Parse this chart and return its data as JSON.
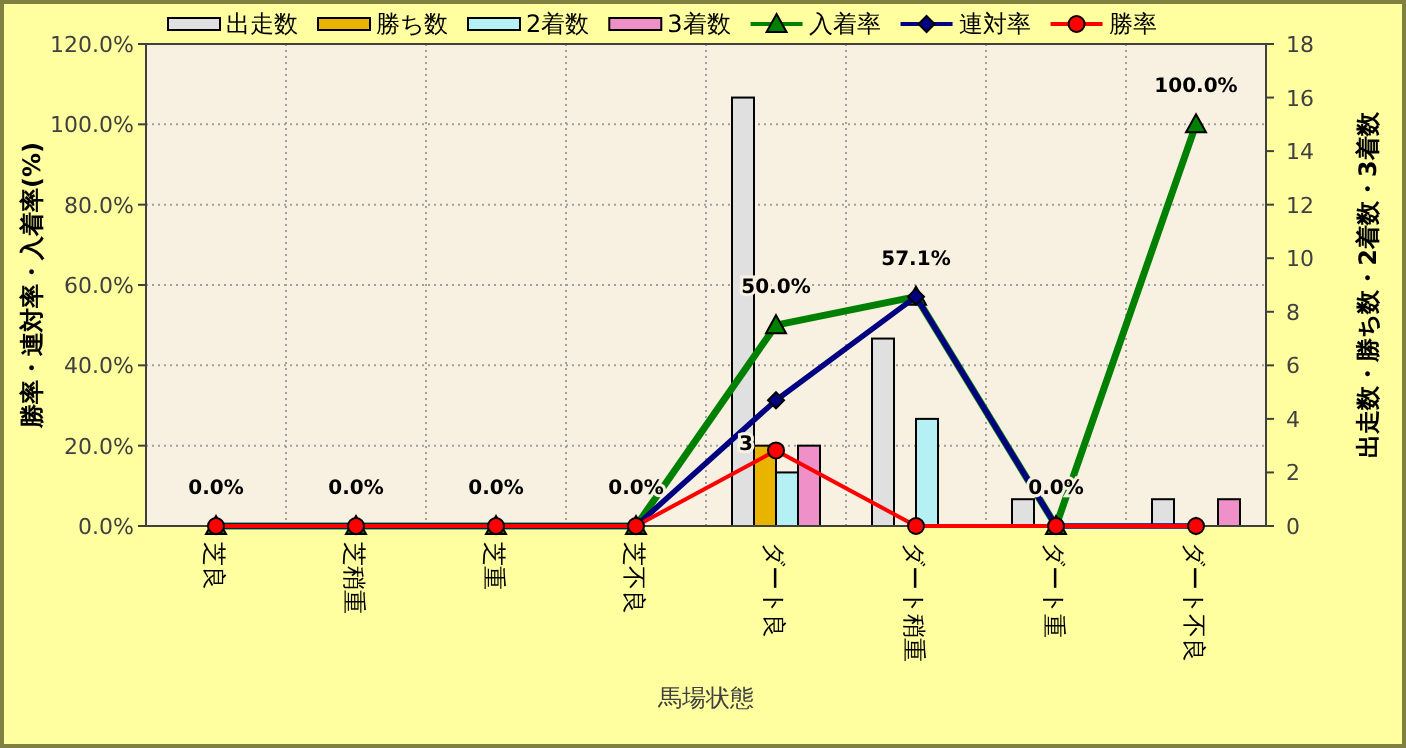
{
  "chart_data": {
    "type": "bar",
    "xlabel": "馬場状態",
    "ylabel": "勝率・連対率・入着率(%)",
    "y2label": "出走数・勝ち数・2着数・3着数",
    "categories": [
      "芝良",
      "芝稍重",
      "芝重",
      "芝不良",
      "ダート良",
      "ダート稍重",
      "ダート重",
      "ダート不良"
    ],
    "series": [
      {
        "name": "出走数",
        "axis": "y2",
        "color": "#e0e0e0",
        "values": [
          0,
          0,
          0,
          0,
          16,
          7,
          1,
          1
        ]
      },
      {
        "name": "勝ち数",
        "axis": "y2",
        "color": "#e8b400",
        "values": [
          0,
          0,
          0,
          0,
          3,
          0,
          0,
          0
        ],
        "value_labels": [
          null,
          null,
          null,
          null,
          "3",
          null,
          null,
          null
        ]
      },
      {
        "name": "2着数",
        "axis": "y2",
        "color": "#b4f0f4",
        "values": [
          0,
          0,
          0,
          0,
          2,
          4,
          0,
          0
        ]
      },
      {
        "name": "3着数",
        "axis": "y2",
        "color": "#f090c8",
        "values": [
          0,
          0,
          0,
          0,
          3,
          0,
          0,
          1
        ]
      },
      {
        "name": "入着率",
        "type": "line",
        "marker": "triangle",
        "color": "#008000",
        "values": [
          0,
          0,
          0,
          0,
          50,
          57.1,
          0,
          100
        ],
        "value_labels": [
          "0.0%",
          "0.0%",
          "0.0%",
          "0.0%",
          "50.0%",
          "57.1%",
          "0.0%",
          "100.0%"
        ]
      },
      {
        "name": "連対率",
        "type": "line",
        "marker": "diamond",
        "color": "#000080",
        "values": [
          0,
          0,
          0,
          0,
          31.3,
          57.1,
          0,
          0
        ]
      },
      {
        "name": "勝率",
        "type": "line",
        "marker": "circle",
        "color": "#ff0000",
        "values": [
          0,
          0,
          0,
          0,
          18.8,
          0,
          0,
          0
        ]
      }
    ],
    "ylim": [
      0,
      120
    ],
    "yticks": [
      {
        "value": 0,
        "label": "0.0%"
      },
      {
        "value": 20,
        "label": "20.0%"
      },
      {
        "value": 40,
        "label": "40.0%"
      },
      {
        "value": 60,
        "label": "60.0%"
      },
      {
        "value": 80,
        "label": "80.0%"
      },
      {
        "value": 100,
        "label": "100.0%"
      },
      {
        "value": 120,
        "label": "120.0%"
      }
    ],
    "y2lim": [
      0,
      18
    ],
    "y2ticks": [
      0,
      2,
      4,
      6,
      8,
      10,
      12,
      14,
      16,
      18
    ],
    "grid": true,
    "legend": "top"
  }
}
